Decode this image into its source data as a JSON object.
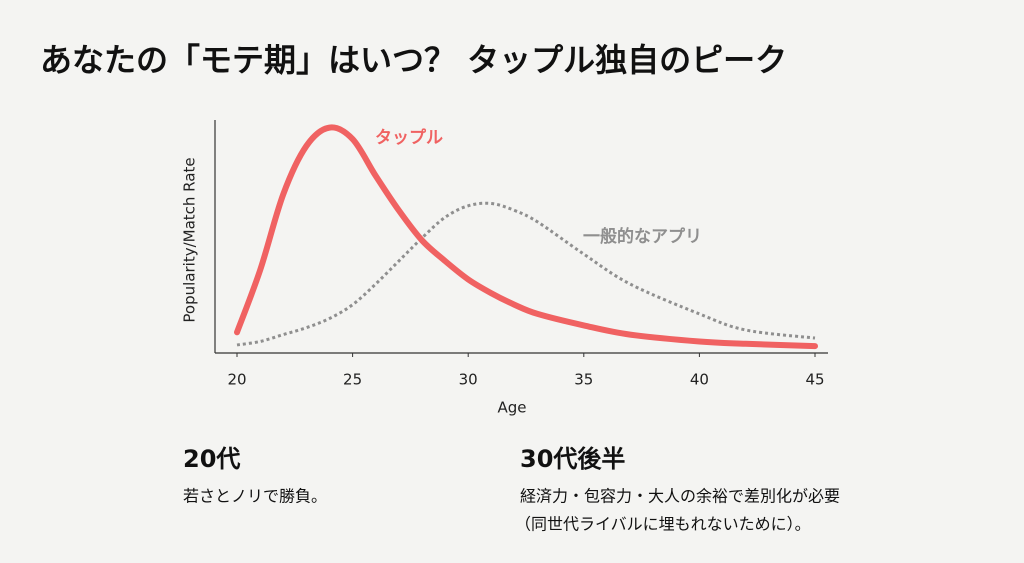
{
  "heading": "あなたの「モテ期」はいつ？ タップル独自のピーク",
  "chart_data": {
    "type": "line",
    "x_label": "Age",
    "y_label": "Popularity/Match Rate",
    "x": [
      20,
      21,
      22,
      23,
      24,
      25,
      26,
      27,
      28,
      29,
      30,
      31,
      32,
      33,
      35,
      37,
      40,
      42,
      45
    ],
    "series": [
      {
        "name": "タップル",
        "color": "#f06262",
        "style": "solid",
        "values": [
          9,
          36,
          69,
          90,
          98,
          93,
          77,
          62,
          49,
          40,
          32,
          26,
          21,
          17,
          12,
          8,
          5,
          4,
          3
        ]
      },
      {
        "name": "一般的なアプリ",
        "color": "#8f8f8f",
        "style": "dotted",
        "values": [
          3.5,
          5,
          8,
          11,
          15,
          21,
          30,
          40,
          50,
          59,
          64,
          65,
          62,
          57,
          43,
          30,
          17,
          10,
          6.5
        ]
      }
    ],
    "xlim": [
      20,
      45
    ],
    "xticks": [
      20,
      25,
      30,
      35,
      40,
      45
    ],
    "ylim": [
      0,
      100
    ],
    "grid": false
  },
  "notes": [
    {
      "heading": "20代",
      "lines": [
        "若さとノリで勝負。"
      ]
    },
    {
      "heading": "30代後半",
      "lines": [
        "経済力・包容力・大人の余裕で差別化が必要",
        "（同世代ライバルに埋もれないために）。"
      ]
    }
  ]
}
